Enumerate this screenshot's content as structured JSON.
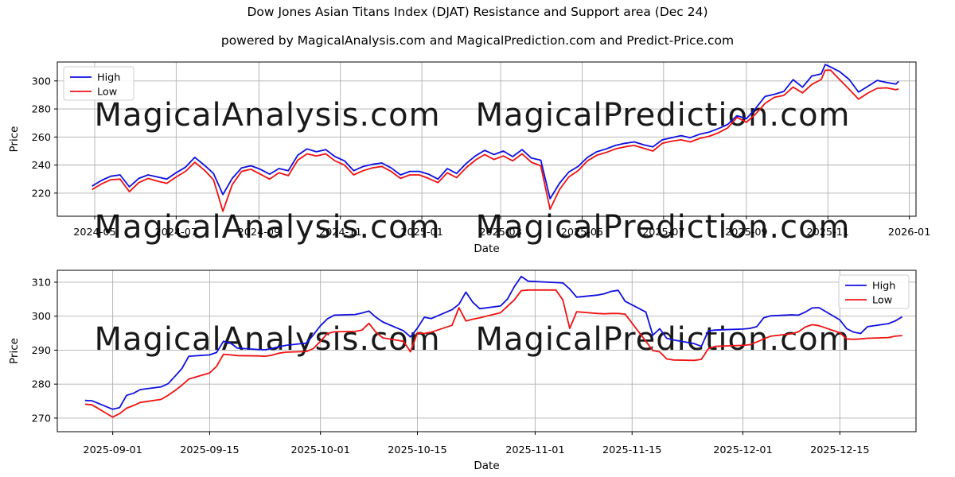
{
  "page": {
    "title": "Dow Jones Asian Titans Index (DJAT) Resistance and Support area (Dec 24)",
    "subtitle": "powered by MagicalAnalysis.com and MagicalPrediction.com and Predict-Price.com"
  },
  "colors": {
    "high": "#0f0fe0",
    "low": "#ef1212",
    "grid": "#b0b0b0",
    "spine": "#000000",
    "watermark": "#e4e4e4",
    "legend_border": "#cccccc",
    "background": "#ffffff"
  },
  "chart_data": [
    {
      "name": "full-history",
      "type": "line",
      "xlabel": "Date",
      "ylabel": "Price",
      "grid": true,
      "ylim": [
        203.5,
        313.5
      ],
      "yticks": [
        220,
        240,
        260,
        280,
        300
      ],
      "xlim": [
        "2024-04-03",
        "2026-01-06"
      ],
      "xticks": [
        {
          "date": "2024-05-01",
          "label": "2024-05"
        },
        {
          "date": "2024-07-01",
          "label": "2024-07"
        },
        {
          "date": "2024-09-01",
          "label": "2024-09"
        },
        {
          "date": "2024-11-01",
          "label": "2024-11"
        },
        {
          "date": "2025-01-01",
          "label": "2025-01"
        },
        {
          "date": "2025-03-01",
          "label": "2025-03"
        },
        {
          "date": "2025-05-01",
          "label": "2025-05"
        },
        {
          "date": "2025-07-01",
          "label": "2025-07"
        },
        {
          "date": "2025-09-01",
          "label": "2025-09"
        },
        {
          "date": "2025-11-01",
          "label": "2025-11"
        },
        {
          "date": "2026-01-01",
          "label": "2026-01"
        }
      ],
      "legend": {
        "position": "upper-left",
        "entries": [
          "High",
          "Low"
        ]
      },
      "watermarks": [
        "MagicalAnalysis.com",
        "MagicalPrediction.com"
      ],
      "dates": [
        "2024-04-29",
        "2024-05-06",
        "2024-05-13",
        "2024-05-20",
        "2024-05-27",
        "2024-06-03",
        "2024-06-10",
        "2024-06-17",
        "2024-06-24",
        "2024-07-01",
        "2024-07-08",
        "2024-07-15",
        "2024-07-22",
        "2024-07-29",
        "2024-08-05",
        "2024-08-12",
        "2024-08-19",
        "2024-08-26",
        "2024-09-02",
        "2024-09-09",
        "2024-09-16",
        "2024-09-23",
        "2024-09-30",
        "2024-10-07",
        "2024-10-14",
        "2024-10-21",
        "2024-10-28",
        "2024-11-04",
        "2024-11-11",
        "2024-11-18",
        "2024-11-25",
        "2024-12-02",
        "2024-12-09",
        "2024-12-16",
        "2024-12-23",
        "2024-12-30",
        "2025-01-06",
        "2025-01-13",
        "2025-01-20",
        "2025-01-27",
        "2025-02-03",
        "2025-02-10",
        "2025-02-17",
        "2025-02-24",
        "2025-03-03",
        "2025-03-10",
        "2025-03-17",
        "2025-03-24",
        "2025-03-31",
        "2025-04-07",
        "2025-04-14",
        "2025-04-21",
        "2025-04-28",
        "2025-05-05",
        "2025-05-12",
        "2025-05-19",
        "2025-05-26",
        "2025-06-02",
        "2025-06-09",
        "2025-06-16",
        "2025-06-23",
        "2025-06-30",
        "2025-07-07",
        "2025-07-14",
        "2025-07-21",
        "2025-07-28",
        "2025-08-04",
        "2025-08-11",
        "2025-08-18",
        "2025-08-25",
        "2025-09-01",
        "2025-09-08",
        "2025-09-15",
        "2025-09-22",
        "2025-09-29",
        "2025-10-06",
        "2025-10-13",
        "2025-10-20",
        "2025-10-27",
        "2025-10-30",
        "2025-11-03",
        "2025-11-10",
        "2025-11-17",
        "2025-11-24",
        "2025-12-01",
        "2025-12-08",
        "2025-12-15",
        "2025-12-22",
        "2025-12-24"
      ],
      "series": [
        {
          "name": "High",
          "color_key": "high",
          "values": [
            225.0,
            229.0,
            232.0,
            233.0,
            224.5,
            230.5,
            233.0,
            231.5,
            230.0,
            234.5,
            238.5,
            245.5,
            240.0,
            234.0,
            219.0,
            230.5,
            238.0,
            239.5,
            237.0,
            233.5,
            237.5,
            236.0,
            247.0,
            251.5,
            249.5,
            251.0,
            246.0,
            243.0,
            236.0,
            239.0,
            240.5,
            241.5,
            238.0,
            233.0,
            235.5,
            235.5,
            233.5,
            230.0,
            237.5,
            234.0,
            241.0,
            246.5,
            250.5,
            247.5,
            250.0,
            246.0,
            251.0,
            245.0,
            243.5,
            216.0,
            227.0,
            235.0,
            239.0,
            245.5,
            249.5,
            251.5,
            254.0,
            255.5,
            256.5,
            254.5,
            253.0,
            258.0,
            259.5,
            261.0,
            259.5,
            262.0,
            263.5,
            266.0,
            269.0,
            275.2,
            273.0,
            280.5,
            289.0,
            290.5,
            292.5,
            300.9,
            295.5,
            303.5,
            305.0,
            311.7,
            310.0,
            306.5,
            301.0,
            292.0,
            296.2,
            300.4,
            298.9,
            297.8,
            299.8
          ]
        },
        {
          "name": "Low",
          "color_key": "low",
          "values": [
            222.5,
            226.5,
            229.5,
            230.0,
            221.0,
            227.5,
            230.5,
            228.5,
            227.0,
            231.5,
            235.5,
            242.0,
            236.5,
            229.5,
            207.0,
            226.0,
            235.5,
            237.0,
            233.5,
            230.0,
            234.5,
            232.5,
            243.5,
            248.0,
            246.5,
            248.0,
            243.0,
            240.0,
            233.0,
            236.0,
            238.0,
            239.0,
            235.5,
            230.5,
            233.0,
            233.0,
            230.5,
            227.5,
            234.5,
            231.0,
            238.0,
            243.5,
            247.5,
            244.0,
            246.5,
            243.0,
            248.0,
            242.0,
            239.5,
            208.5,
            222.5,
            231.5,
            236.0,
            243.0,
            247.0,
            249.0,
            251.5,
            253.0,
            254.0,
            252.0,
            250.0,
            255.5,
            257.0,
            258.0,
            256.5,
            259.0,
            260.5,
            263.0,
            266.5,
            274.0,
            270.5,
            276.5,
            284.0,
            288.3,
            289.7,
            295.6,
            291.5,
            297.5,
            301.0,
            307.6,
            307.7,
            300.8,
            294.0,
            287.0,
            291.4,
            294.8,
            295.1,
            293.7,
            294.3
          ]
        }
      ]
    },
    {
      "name": "recent-detail",
      "type": "line",
      "xlabel": "Date",
      "ylabel": "Price",
      "grid": true,
      "ylim": [
        266.0,
        313.5
      ],
      "yticks": [
        270,
        280,
        290,
        300,
        310
      ],
      "xlim": [
        "2025-08-24",
        "2025-12-26"
      ],
      "xticks": [
        {
          "date": "2025-09-01",
          "label": "2025-09-01"
        },
        {
          "date": "2025-09-15",
          "label": "2025-09-15"
        },
        {
          "date": "2025-10-01",
          "label": "2025-10-01"
        },
        {
          "date": "2025-10-15",
          "label": "2025-10-15"
        },
        {
          "date": "2025-11-01",
          "label": "2025-11-01"
        },
        {
          "date": "2025-11-15",
          "label": "2025-11-15"
        },
        {
          "date": "2025-12-01",
          "label": "2025-12-01"
        },
        {
          "date": "2025-12-15",
          "label": "2025-12-15"
        }
      ],
      "legend": {
        "position": "upper-right",
        "entries": [
          "High",
          "Low"
        ]
      },
      "watermarks": [
        "MagicalAnalysis.com",
        "MagicalPrediction.com"
      ],
      "dates": [
        "2025-08-28",
        "2025-08-29",
        "2025-09-01",
        "2025-09-02",
        "2025-09-03",
        "2025-09-04",
        "2025-09-05",
        "2025-09-08",
        "2025-09-09",
        "2025-09-10",
        "2025-09-11",
        "2025-09-12",
        "2025-09-15",
        "2025-09-16",
        "2025-09-17",
        "2025-09-18",
        "2025-09-19",
        "2025-09-22",
        "2025-09-23",
        "2025-09-24",
        "2025-09-25",
        "2025-09-26",
        "2025-09-29",
        "2025-09-30",
        "2025-10-01",
        "2025-10-02",
        "2025-10-03",
        "2025-10-06",
        "2025-10-07",
        "2025-10-08",
        "2025-10-09",
        "2025-10-10",
        "2025-10-13",
        "2025-10-14",
        "2025-10-15",
        "2025-10-16",
        "2025-10-17",
        "2025-10-20",
        "2025-10-21",
        "2025-10-22",
        "2025-10-23",
        "2025-10-24",
        "2025-10-27",
        "2025-10-28",
        "2025-10-29",
        "2025-10-30",
        "2025-10-31",
        "2025-11-03",
        "2025-11-04",
        "2025-11-05",
        "2025-11-06",
        "2025-11-07",
        "2025-11-10",
        "2025-11-11",
        "2025-11-12",
        "2025-11-13",
        "2025-11-14",
        "2025-11-17",
        "2025-11-18",
        "2025-11-19",
        "2025-11-20",
        "2025-11-21",
        "2025-11-24",
        "2025-11-25",
        "2025-11-26",
        "2025-11-27",
        "2025-11-28",
        "2025-12-01",
        "2025-12-02",
        "2025-12-03",
        "2025-12-04",
        "2025-12-05",
        "2025-12-08",
        "2025-12-09",
        "2025-12-10",
        "2025-12-11",
        "2025-12-12",
        "2025-12-15",
        "2025-12-16",
        "2025-12-17",
        "2025-12-18",
        "2025-12-19",
        "2025-12-22",
        "2025-12-23",
        "2025-12-24"
      ],
      "series": [
        {
          "name": "High",
          "color_key": "high",
          "values": [
            275.2,
            275.1,
            272.6,
            273.1,
            276.7,
            277.3,
            278.4,
            279.2,
            280.1,
            282.3,
            284.6,
            288.2,
            288.6,
            289.3,
            292.6,
            292.1,
            290.6,
            290.2,
            290.1,
            290.5,
            291.0,
            291.4,
            292.1,
            294.6,
            297.2,
            299.2,
            300.3,
            300.5,
            300.9,
            301.5,
            299.7,
            298.3,
            295.7,
            293.9,
            296.5,
            299.7,
            299.3,
            301.9,
            303.5,
            307.1,
            304.1,
            302.2,
            303.0,
            305.0,
            308.7,
            311.7,
            310.3,
            310.0,
            309.9,
            309.8,
            308.0,
            305.6,
            306.2,
            306.6,
            307.3,
            307.6,
            304.4,
            301.2,
            294.4,
            296.3,
            293.5,
            293.0,
            291.9,
            291.1,
            295.7,
            295.9,
            296.0,
            296.2,
            296.4,
            296.9,
            299.5,
            300.1,
            300.4,
            300.3,
            301.2,
            302.4,
            302.5,
            298.9,
            296.3,
            295.3,
            294.9,
            296.9,
            297.8,
            298.6,
            299.8
          ]
        },
        {
          "name": "Low",
          "color_key": "low",
          "values": [
            274.1,
            273.9,
            270.3,
            271.3,
            272.9,
            273.7,
            274.6,
            275.5,
            276.7,
            278.1,
            279.7,
            281.5,
            283.3,
            285.2,
            288.8,
            288.6,
            288.4,
            288.3,
            288.2,
            288.5,
            289.1,
            289.4,
            289.6,
            290.5,
            292.6,
            294.9,
            295.4,
            295.5,
            295.9,
            297.9,
            295.3,
            293.6,
            292.6,
            289.5,
            295.1,
            294.9,
            295.3,
            297.3,
            302.5,
            298.6,
            299.1,
            299.5,
            301.0,
            302.9,
            304.8,
            307.5,
            307.7,
            307.7,
            307.7,
            304.8,
            296.4,
            301.3,
            300.8,
            300.7,
            300.8,
            300.8,
            300.6,
            292.6,
            289.9,
            289.5,
            287.4,
            287.1,
            287.0,
            287.3,
            290.4,
            291.1,
            291.2,
            291.4,
            291.6,
            292.4,
            293.3,
            294.1,
            294.8,
            295.4,
            296.8,
            297.5,
            297.2,
            295.1,
            293.3,
            293.2,
            293.3,
            293.5,
            293.7,
            294.1,
            294.3
          ]
        }
      ]
    }
  ]
}
